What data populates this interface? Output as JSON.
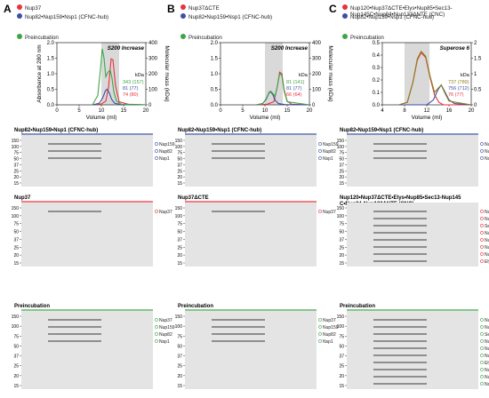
{
  "panels": [
    {
      "letter": "A",
      "legend": [
        "Nup37",
        "Nup82•Nup159•Nsp1 (CFNC-hub)",
        "Preincubation"
      ],
      "column_title": "S200 Increase",
      "mw": {
        "head": "kDa",
        "values": [
          "343 (157)",
          "81 (77)",
          "74 (80)"
        ]
      },
      "gels": [
        {
          "title": "Nup82•Nup159•Nsp1 (CFNC-hub)",
          "bands": [
            "Nup159",
            "Nup82",
            "Nsp1"
          ]
        },
        {
          "title": "Nup37",
          "bands": [
            "Nup37"
          ]
        },
        {
          "title": "Preincubation",
          "bands": [
            "Nup37",
            "Nup159",
            "Nup82",
            "Nsp1"
          ]
        }
      ]
    },
    {
      "letter": "B",
      "legend": [
        "Nup37ΔCTE",
        "Nup82•Nup159•Nsp1 (CFNC-hub)",
        "Preincubation"
      ],
      "column_title": "S200 Increase",
      "mw": {
        "head": "kDa",
        "values": [
          "81 (141)",
          "81 (77)",
          "66 (64)"
        ]
      },
      "gels": [
        {
          "title": "Nup82•Nup159•Nsp1 (CFNC-hub)",
          "bands": [
            "Nup159",
            "Nup82",
            "Nsp1"
          ]
        },
        {
          "title": "Nup37ΔCTE",
          "bands": [
            "Nup37"
          ]
        },
        {
          "title": "Preincubation",
          "bands": [
            "Nup37",
            "Nup159",
            "Nup82",
            "Nsp1"
          ]
        }
      ]
    },
    {
      "letter": "C",
      "legend": [
        "Nup120•Nup37ΔCTE•Elys•Nup85•Sec13-Nup145C•Nup84•Nup133ΔNTE (CNC)",
        "Nup82•Nup159•Nsp1 (CFNC-hub)",
        "Preincubation"
      ],
      "column_title": "Superose 6",
      "mw": {
        "head": "kDa",
        "values": [
          "737 (789)",
          "756 (712)",
          "76 (77)"
        ]
      },
      "gels": [
        {
          "title": "Nup82•Nup159•Nsp1 (CFNC-hub)",
          "bands": [
            "Nup159",
            "Nup82",
            "Nsp1"
          ]
        },
        {
          "title": "Nup120•Nup37ΔCTE•Elys•Nup85•Sec13-Nup145C•Nup84•Nup133ΔNTE (CNC)",
          "bands": [
            "Nup133",
            "Nup120",
            "Sec13",
            "Nup145C*",
            "Nup84",
            "Nup85",
            "Nup37",
            "Elys"
          ]
        },
        {
          "title": "Preincubation",
          "bands": [
            "Nup133",
            "Nup120",
            "Sec13",
            "Nup145C*",
            "Nup84",
            "Nup85",
            "Elys",
            "Nup159",
            "Nup82",
            "Nsp1"
          ]
        }
      ]
    }
  ],
  "markers": [
    "150",
    "100",
    "75",
    "50",
    "37",
    "25",
    "20",
    "15"
  ],
  "chart_data": [
    {
      "type": "line",
      "xlabel": "Volume (ml)",
      "ylabel": "Absorbance at 280 nm",
      "y2label": "Molecular mass (kDa)",
      "xlim": [
        0,
        20
      ],
      "ylim": [
        0,
        2.0
      ],
      "y2lim": [
        0,
        400
      ],
      "xticks": [
        0,
        5,
        10,
        15,
        20
      ],
      "yticks": [
        0.0,
        0.5,
        1.0,
        1.5,
        2.0
      ],
      "y2ticks": [
        0,
        100,
        200,
        300,
        400
      ],
      "series": [
        {
          "name": "Nup37",
          "color": "#e8323c",
          "x": [
            8,
            10,
            11,
            11.6,
            12.2,
            12.6,
            13.2,
            14,
            16,
            20
          ],
          "y": [
            0,
            0.03,
            0.12,
            0.55,
            1.48,
            1.45,
            0.6,
            0.1,
            0.02,
            0.0
          ]
        },
        {
          "name": "Nup82•Nup159•Nsp1 (CFNC-hub)",
          "color": "#3a4fa5",
          "x": [
            8,
            9.5,
            10.3,
            10.9,
            11.3,
            11.8,
            12.3,
            13,
            14.5,
            20
          ],
          "y": [
            0,
            0.05,
            0.22,
            0.45,
            0.5,
            0.38,
            0.18,
            0.05,
            0.01,
            0.0
          ]
        },
        {
          "name": "Preincubation",
          "color": "#3da548",
          "x": [
            8,
            9.2,
            9.8,
            10.2,
            10.6,
            11.0,
            11.5,
            12.0,
            12.4,
            12.8,
            13.4,
            14.5,
            20
          ],
          "y": [
            0,
            0.3,
            1.15,
            1.8,
            1.5,
            0.9,
            1.05,
            1.12,
            0.85,
            0.42,
            0.12,
            0.02,
            0.0
          ]
        }
      ]
    },
    {
      "type": "line",
      "xlabel": "Volume (ml)",
      "ylabel": "Absorbance at 280 nm",
      "y2label": "Molecular mass (kDa)",
      "xlim": [
        0,
        20
      ],
      "ylim": [
        0,
        2.0
      ],
      "y2lim": [
        0,
        400
      ],
      "xticks": [
        0,
        5,
        10,
        15,
        20
      ],
      "yticks": [
        0.0,
        0.5,
        1.0,
        1.5,
        2.0
      ],
      "y2ticks": [
        0,
        100,
        200,
        300,
        400
      ],
      "series": [
        {
          "name": "Nup37ΔCTE",
          "color": "#e8323c",
          "x": [
            8,
            10.5,
            12,
            12.8,
            13.3,
            13.8,
            14.3,
            15,
            16,
            20
          ],
          "y": [
            0,
            0.02,
            0.1,
            0.6,
            1.05,
            1.0,
            0.5,
            0.12,
            0.02,
            0.0
          ]
        },
        {
          "name": "Nup82•Nup159•Nsp1 (CFNC-hub)",
          "color": "#3a4fa5",
          "x": [
            8,
            9.5,
            10.3,
            10.9,
            11.3,
            11.8,
            12.3,
            13,
            14.5,
            20
          ],
          "y": [
            0,
            0.04,
            0.18,
            0.38,
            0.42,
            0.32,
            0.15,
            0.04,
            0.01,
            0.0
          ]
        },
        {
          "name": "Preincubation",
          "color": "#3da548",
          "x": [
            8,
            9.5,
            10.3,
            10.9,
            11.3,
            11.8,
            12.3,
            12.8,
            13.3,
            13.8,
            14.3,
            15,
            20
          ],
          "y": [
            0,
            0.04,
            0.2,
            0.4,
            0.44,
            0.36,
            0.28,
            0.6,
            1.0,
            0.95,
            0.45,
            0.1,
            0.0
          ]
        }
      ]
    },
    {
      "type": "line",
      "xlabel": "Volume (ml)",
      "ylabel": "Absorbance at 280 nm",
      "y2label": "Molecular mass (MDa)",
      "xlim": [
        4,
        20
      ],
      "ylim": [
        0,
        0.5
      ],
      "y2lim": [
        0,
        2.0
      ],
      "xticks": [
        4,
        8,
        12,
        16,
        20
      ],
      "yticks": [
        0.0,
        0.1,
        0.2,
        0.3,
        0.4,
        0.5
      ],
      "y2ticks": [
        0,
        0.5,
        1.0,
        1.5,
        2.0
      ],
      "series": [
        {
          "name": "Nup120•Nup37ΔCTE•Elys•Nup85•Sec13-Nup145C•Nup84•Nup133ΔNTE (CNC)",
          "color": "#e8323c",
          "x": [
            7,
            8.5,
            9.5,
            10.3,
            11.0,
            11.8,
            12.6,
            13.4,
            14.2,
            15,
            20
          ],
          "y": [
            0,
            0.02,
            0.18,
            0.36,
            0.42,
            0.38,
            0.22,
            0.08,
            0.02,
            0.0,
            0.0
          ]
        },
        {
          "name": "Nup82•Nup159•Nsp1 (CFNC-hub)",
          "color": "#3a4fa5",
          "x": [
            7,
            12,
            13.2,
            14.0,
            14.6,
            15.2,
            16,
            17,
            20
          ],
          "y": [
            0,
            0.0,
            0.04,
            0.12,
            0.16,
            0.11,
            0.04,
            0.01,
            0.0
          ]
        },
        {
          "name": "Preincubation",
          "color": "#8a7e1e",
          "x": [
            7,
            8.5,
            9.5,
            10.3,
            11.0,
            11.8,
            12.6,
            13.4,
            14.0,
            14.6,
            15.2,
            16,
            20
          ],
          "y": [
            0,
            0.02,
            0.18,
            0.37,
            0.43,
            0.39,
            0.23,
            0.1,
            0.13,
            0.16,
            0.1,
            0.03,
            0.0
          ]
        }
      ]
    }
  ]
}
